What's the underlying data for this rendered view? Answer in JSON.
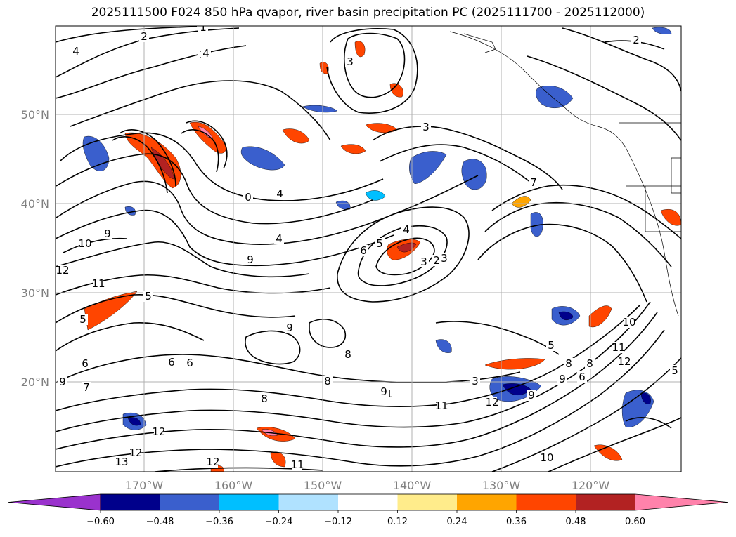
{
  "title": "2025111500 F024 850 hPa qvapor, river basin precipitation PC (2025111700 - 2025112000)",
  "lat_labels": [
    "50°N",
    "40°N",
    "30°N",
    "20°N"
  ],
  "lon_labels": [
    "170°W",
    "160°W",
    "150°W",
    "140°W",
    "130°W",
    "120°W"
  ],
  "colorbar": {
    "ticks": [
      "−0.60",
      "−0.48",
      "−0.36",
      "−0.24",
      "−0.12",
      "0.12",
      "0.24",
      "0.36",
      "0.48",
      "0.60"
    ],
    "colors": [
      "#9a32cd",
      "#00008b",
      "#3a5fcd",
      "#00bfff",
      "#b0e2ff",
      "#ffffff",
      "#ffec8b",
      "#ffa500",
      "#ff4500",
      "#b22222",
      "#ff82ab"
    ]
  },
  "contour_labels": [
    "1",
    "2",
    "3",
    "4",
    "4",
    "3",
    "2",
    "3",
    "4",
    "0",
    "9",
    "10",
    "12",
    "11",
    "9",
    "4",
    "6",
    "5",
    "4",
    "3",
    "2",
    "3",
    "7",
    "5",
    "8",
    "9",
    "11",
    "12",
    "13",
    "12",
    "12",
    "11",
    "10",
    "9",
    "12",
    "11",
    "10",
    "8",
    "6",
    "5",
    "3",
    "5",
    "6",
    "9",
    "8",
    "8",
    "11",
    "12",
    "6",
    "5",
    "7",
    "9",
    "8",
    "6",
    "9"
  ],
  "colors": {
    "contour": "#000000",
    "grid": "#b0b0b0",
    "label_gray": "#808080"
  }
}
